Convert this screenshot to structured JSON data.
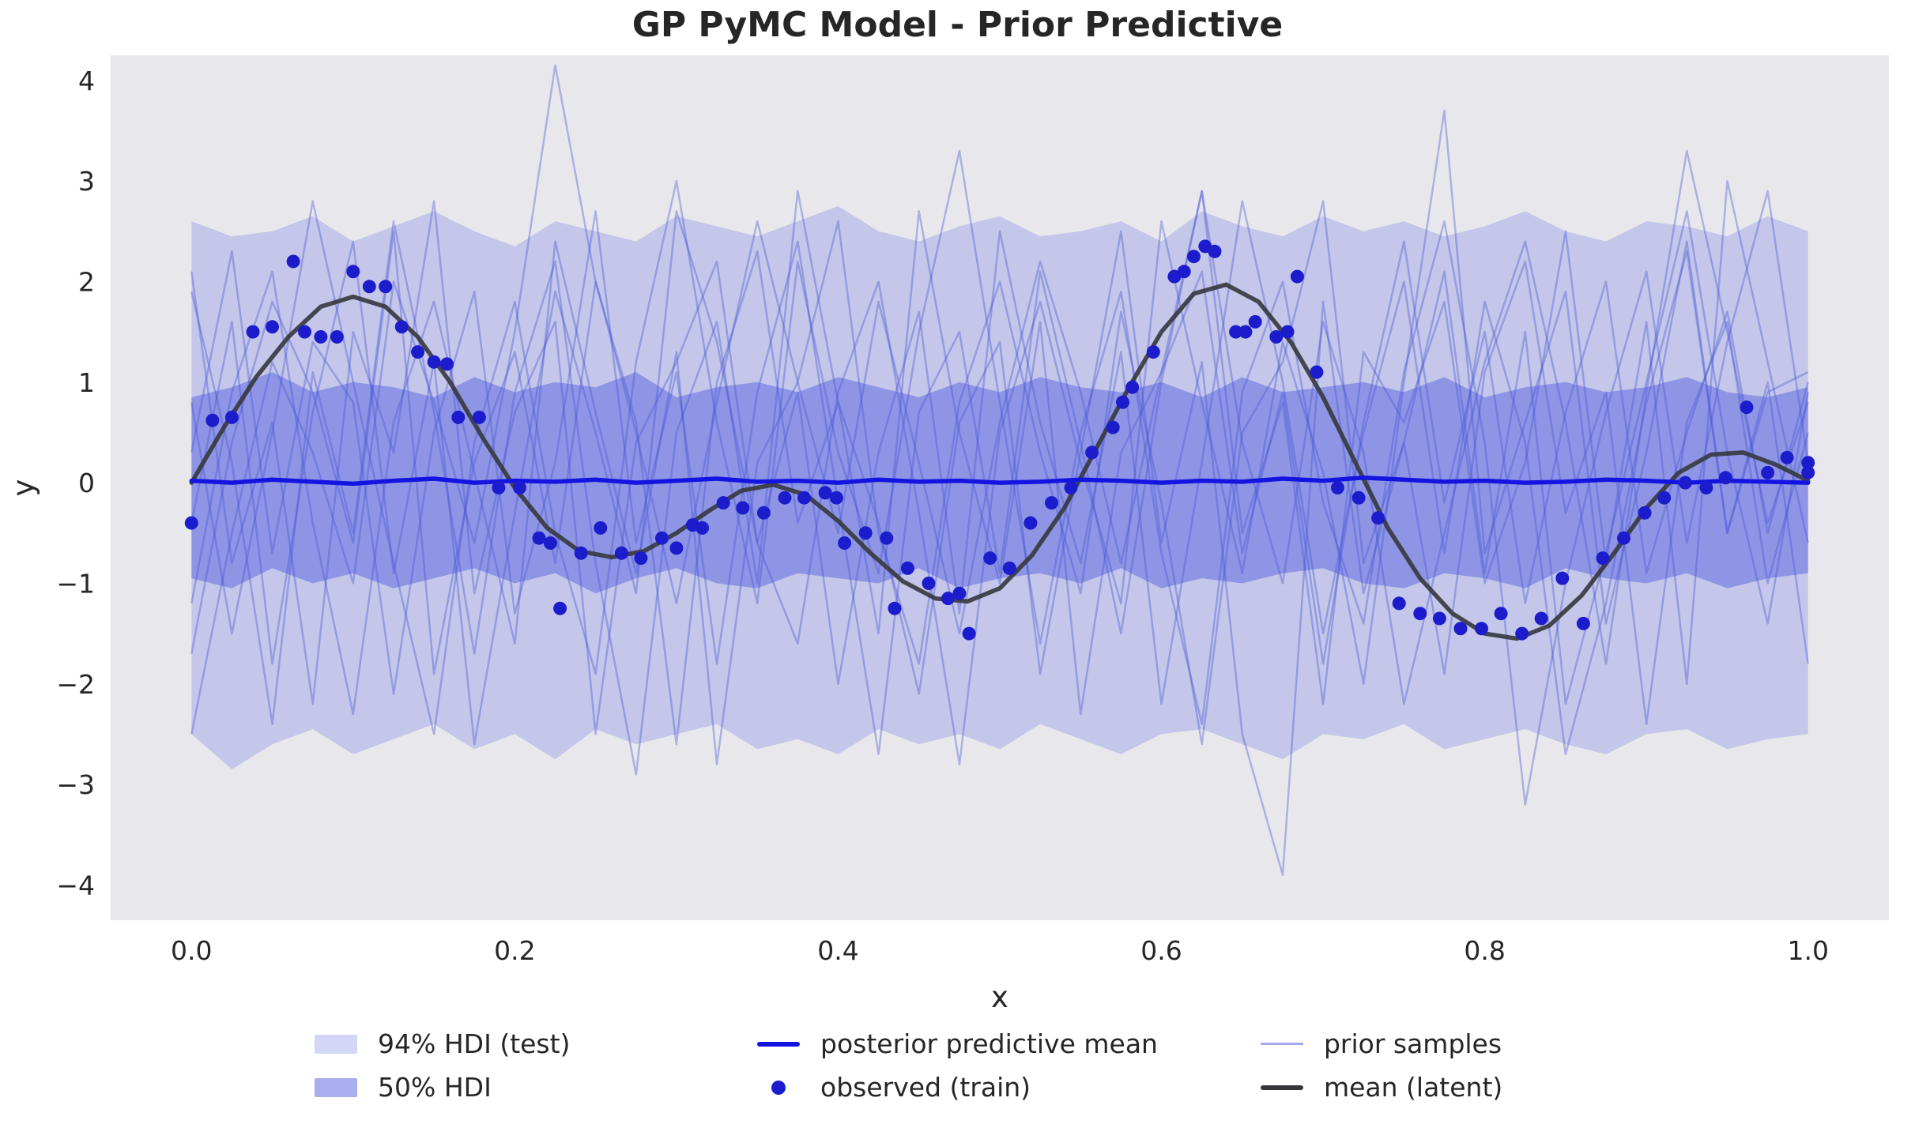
{
  "style": {
    "background": "#ffffff",
    "plot_bg": "#e8e8ec",
    "text_color": "#262626",
    "band_color": "#4350e0",
    "band94_opacity": 0.22,
    "band50_opacity": 0.42,
    "prior_sample_color": "#4754d6",
    "prior_sample_opacity": 0.38,
    "posterior_mean_color": "#1414e0",
    "observed_color": "#1c1ccc",
    "latent_color": "#35373d",
    "legend_94_swatch": "#d3d6f6",
    "legend_50_swatch": "#a9aeee",
    "legend_prior_swatch": "#a2aaec"
  },
  "chart_data": {
    "type": "line",
    "title": "GP PyMC Model - Prior Predictive",
    "xlabel": "x",
    "ylabel": "y",
    "xlim": [
      -0.05,
      1.05
    ],
    "ylim": [
      -4.35,
      4.25
    ],
    "xticks": [
      0.0,
      0.2,
      0.4,
      0.6,
      0.8,
      1.0
    ],
    "yticks": [
      -4,
      -3,
      -2,
      -1,
      0,
      1,
      2,
      3,
      4
    ],
    "grid": false,
    "legend_position": "below-center",
    "legend": {
      "hdi94": "94% HDI (test)",
      "hdi50": "50% HDI",
      "posterior_mean": "posterior predictive mean",
      "observed": "observed (train)",
      "prior_samples": "prior samples",
      "latent_mean": "mean (latent)"
    },
    "x_grid": [
      0.0,
      0.025,
      0.05,
      0.075,
      0.1,
      0.125,
      0.15,
      0.175,
      0.2,
      0.225,
      0.25,
      0.275,
      0.3,
      0.325,
      0.35,
      0.375,
      0.4,
      0.425,
      0.45,
      0.475,
      0.5,
      0.525,
      0.55,
      0.575,
      0.6,
      0.625,
      0.65,
      0.675,
      0.7,
      0.725,
      0.75,
      0.775,
      0.8,
      0.825,
      0.85,
      0.875,
      0.9,
      0.925,
      0.95,
      0.975,
      1.0
    ],
    "bands": {
      "hdi94": {
        "label": "94% HDI (test)",
        "upper": [
          2.6,
          2.45,
          2.5,
          2.65,
          2.4,
          2.55,
          2.7,
          2.5,
          2.35,
          2.6,
          2.5,
          2.4,
          2.65,
          2.55,
          2.45,
          2.6,
          2.75,
          2.5,
          2.4,
          2.55,
          2.65,
          2.45,
          2.5,
          2.6,
          2.4,
          2.7,
          2.55,
          2.45,
          2.65,
          2.5,
          2.6,
          2.45,
          2.55,
          2.7,
          2.5,
          2.4,
          2.6,
          2.55,
          2.45,
          2.65,
          2.5
        ],
        "lower": [
          -2.5,
          -2.85,
          -2.6,
          -2.45,
          -2.7,
          -2.55,
          -2.4,
          -2.65,
          -2.5,
          -2.75,
          -2.45,
          -2.6,
          -2.5,
          -2.4,
          -2.65,
          -2.55,
          -2.7,
          -2.45,
          -2.6,
          -2.5,
          -2.65,
          -2.4,
          -2.55,
          -2.7,
          -2.5,
          -2.45,
          -2.6,
          -2.75,
          -2.5,
          -2.55,
          -2.4,
          -2.65,
          -2.55,
          -2.45,
          -2.6,
          -2.7,
          -2.5,
          -2.45,
          -2.65,
          -2.55,
          -2.5
        ]
      },
      "hdi50": {
        "label": "50% HDI",
        "upper": [
          0.85,
          0.95,
          1.1,
          0.9,
          1.0,
          0.95,
          0.85,
          1.05,
          0.9,
          1.0,
          0.95,
          1.1,
          0.85,
          0.95,
          1.0,
          0.9,
          1.05,
          0.95,
          0.85,
          1.0,
          0.9,
          1.05,
          0.95,
          0.9,
          1.0,
          0.85,
          1.05,
          0.9,
          0.95,
          1.0,
          0.9,
          1.05,
          0.85,
          0.95,
          1.0,
          0.9,
          0.95,
          1.05,
          0.9,
          0.85,
          0.95
        ],
        "lower": [
          -0.95,
          -1.05,
          -0.85,
          -1.0,
          -0.9,
          -1.05,
          -0.95,
          -0.85,
          -1.0,
          -0.9,
          -1.1,
          -0.95,
          -0.85,
          -1.0,
          -1.05,
          -0.9,
          -0.95,
          -1.0,
          -0.85,
          -1.05,
          -0.95,
          -0.9,
          -1.0,
          -0.85,
          -1.05,
          -0.95,
          -1.0,
          -0.9,
          -0.85,
          -1.0,
          -1.05,
          -0.9,
          -0.95,
          -1.05,
          -0.85,
          -0.95,
          -1.0,
          -0.9,
          -1.05,
          -0.95,
          -0.9
        ]
      }
    },
    "posterior_mean": {
      "label": "posterior predictive mean",
      "y": [
        0.02,
        0.0,
        0.03,
        0.01,
        -0.01,
        0.02,
        0.04,
        0.0,
        0.02,
        0.01,
        0.03,
        0.0,
        0.02,
        0.04,
        0.01,
        0.02,
        0.0,
        0.03,
        0.01,
        0.02,
        0.0,
        0.01,
        0.03,
        0.02,
        0.0,
        0.02,
        0.01,
        0.04,
        0.02,
        0.05,
        0.03,
        0.01,
        0.02,
        0.0,
        0.01,
        0.03,
        0.02,
        0.0,
        0.02,
        0.01,
        0.0
      ]
    },
    "latent_mean": {
      "label": "mean (latent)",
      "x": [
        0.0,
        0.02,
        0.04,
        0.06,
        0.08,
        0.1,
        0.12,
        0.14,
        0.16,
        0.18,
        0.2,
        0.22,
        0.24,
        0.26,
        0.28,
        0.3,
        0.32,
        0.34,
        0.36,
        0.38,
        0.4,
        0.42,
        0.44,
        0.46,
        0.48,
        0.5,
        0.52,
        0.54,
        0.56,
        0.58,
        0.6,
        0.62,
        0.64,
        0.66,
        0.68,
        0.7,
        0.72,
        0.74,
        0.76,
        0.78,
        0.8,
        0.82,
        0.84,
        0.86,
        0.88,
        0.9,
        0.92,
        0.94,
        0.96,
        0.98,
        1.0
      ],
      "y": [
        0.0,
        0.55,
        1.05,
        1.45,
        1.75,
        1.85,
        1.75,
        1.45,
        1.0,
        0.45,
        -0.05,
        -0.45,
        -0.68,
        -0.74,
        -0.68,
        -0.5,
        -0.28,
        -0.08,
        -0.02,
        -0.12,
        -0.38,
        -0.7,
        -0.98,
        -1.15,
        -1.18,
        -1.05,
        -0.72,
        -0.25,
        0.35,
        0.95,
        1.5,
        1.88,
        1.97,
        1.8,
        1.4,
        0.85,
        0.2,
        -0.45,
        -0.95,
        -1.3,
        -1.5,
        -1.55,
        -1.42,
        -1.12,
        -0.7,
        -0.25,
        0.1,
        0.28,
        0.3,
        0.18,
        0.02
      ]
    },
    "observed": {
      "label": "observed (train)",
      "points": [
        [
          0.0,
          -0.4
        ],
        [
          0.013,
          0.62
        ],
        [
          0.025,
          0.65
        ],
        [
          0.038,
          1.5
        ],
        [
          0.05,
          1.55
        ],
        [
          0.063,
          2.2
        ],
        [
          0.07,
          1.5
        ],
        [
          0.08,
          1.45
        ],
        [
          0.09,
          1.45
        ],
        [
          0.1,
          2.1
        ],
        [
          0.11,
          1.95
        ],
        [
          0.12,
          1.95
        ],
        [
          0.13,
          1.55
        ],
        [
          0.14,
          1.3
        ],
        [
          0.15,
          1.2
        ],
        [
          0.158,
          1.18
        ],
        [
          0.165,
          0.65
        ],
        [
          0.178,
          0.65
        ],
        [
          0.19,
          -0.05
        ],
        [
          0.203,
          -0.05
        ],
        [
          0.215,
          -0.55
        ],
        [
          0.222,
          -0.6
        ],
        [
          0.228,
          -1.25
        ],
        [
          0.241,
          -0.7
        ],
        [
          0.253,
          -0.45
        ],
        [
          0.266,
          -0.7
        ],
        [
          0.278,
          -0.75
        ],
        [
          0.291,
          -0.55
        ],
        [
          0.3,
          -0.65
        ],
        [
          0.31,
          -0.42
        ],
        [
          0.316,
          -0.45
        ],
        [
          0.329,
          -0.2
        ],
        [
          0.341,
          -0.25
        ],
        [
          0.354,
          -0.3
        ],
        [
          0.367,
          -0.15
        ],
        [
          0.379,
          -0.15
        ],
        [
          0.392,
          -0.1
        ],
        [
          0.399,
          -0.15
        ],
        [
          0.404,
          -0.6
        ],
        [
          0.417,
          -0.5
        ],
        [
          0.43,
          -0.55
        ],
        [
          0.435,
          -1.25
        ],
        [
          0.443,
          -0.85
        ],
        [
          0.456,
          -1.0
        ],
        [
          0.468,
          -1.15
        ],
        [
          0.475,
          -1.1
        ],
        [
          0.481,
          -1.5
        ],
        [
          0.494,
          -0.75
        ],
        [
          0.506,
          -0.85
        ],
        [
          0.519,
          -0.4
        ],
        [
          0.532,
          -0.2
        ],
        [
          0.544,
          -0.05
        ],
        [
          0.557,
          0.3
        ],
        [
          0.57,
          0.55
        ],
        [
          0.576,
          0.8
        ],
        [
          0.582,
          0.95
        ],
        [
          0.595,
          1.3
        ],
        [
          0.608,
          2.05
        ],
        [
          0.614,
          2.1
        ],
        [
          0.62,
          2.25
        ],
        [
          0.627,
          2.35
        ],
        [
          0.633,
          2.3
        ],
        [
          0.646,
          1.5
        ],
        [
          0.652,
          1.5
        ],
        [
          0.658,
          1.6
        ],
        [
          0.671,
          1.45
        ],
        [
          0.678,
          1.5
        ],
        [
          0.684,
          2.05
        ],
        [
          0.696,
          1.1
        ],
        [
          0.709,
          -0.05
        ],
        [
          0.722,
          -0.15
        ],
        [
          0.734,
          -0.35
        ],
        [
          0.747,
          -1.2
        ],
        [
          0.76,
          -1.3
        ],
        [
          0.772,
          -1.35
        ],
        [
          0.785,
          -1.45
        ],
        [
          0.798,
          -1.45
        ],
        [
          0.81,
          -1.3
        ],
        [
          0.823,
          -1.5
        ],
        [
          0.835,
          -1.35
        ],
        [
          0.848,
          -0.95
        ],
        [
          0.861,
          -1.4
        ],
        [
          0.873,
          -0.75
        ],
        [
          0.886,
          -0.55
        ],
        [
          0.899,
          -0.3
        ],
        [
          0.911,
          -0.15
        ],
        [
          0.924,
          0.0
        ],
        [
          0.937,
          -0.05
        ],
        [
          0.949,
          0.05
        ],
        [
          0.962,
          0.75
        ],
        [
          0.975,
          0.1
        ],
        [
          0.987,
          0.25
        ],
        [
          1.0,
          0.1
        ],
        [
          1.0,
          0.2
        ]
      ]
    },
    "prior_samples": {
      "label": "prior samples",
      "y_list": [
        [
          -2.5,
          -0.5,
          1.2,
          0.3,
          -1.0,
          2.0,
          0.8,
          -0.6,
          1.5,
          4.15,
          2.0,
          0.5,
          -1.2,
          0.8,
          2.6,
          1.0,
          -0.5,
          1.8,
          0.2,
          -1.5,
          0.6,
          2.2,
          0.9,
          -0.8,
          1.1,
          2.9,
          0.4,
          -1.0,
          1.6,
          0.3,
          -2.2,
          -0.5,
          1.2,
          2.4,
          0.6,
          -1.8,
          0.9,
          3.3,
          1.5,
          -0.4,
          0.8
        ],
        [
          0.8,
          -1.5,
          0.5,
          2.8,
          1.0,
          -0.8,
          -2.5,
          0.4,
          1.8,
          -0.5,
          -1.9,
          1.2,
          3.0,
          0.6,
          -1.2,
          2.2,
          0.3,
          -0.9,
          1.5,
          3.3,
          0.8,
          -1.6,
          0.5,
          1.9,
          -0.7,
          -2.4,
          0.9,
          2.0,
          -0.2,
          -1.4,
          1.1,
          2.6,
          0.4,
          -3.2,
          -1.0,
          0.7,
          2.1,
          -0.6,
          1.4,
          2.9,
          0.2
        ],
        [
          -0.4,
          1.6,
          -1.8,
          0.7,
          2.4,
          -0.9,
          1.2,
          -2.6,
          -0.3,
          1.9,
          0.5,
          -1.1,
          2.7,
          1.4,
          -0.6,
          0.9,
          -2.0,
          0.3,
          1.7,
          -1.3,
          2.5,
          0.6,
          -0.8,
          1.3,
          -2.2,
          0.2,
          2.8,
          1.0,
          -1.5,
          0.5,
          2.0,
          -0.7,
          1.8,
          0.4,
          -2.7,
          -1.2,
          0.8,
          2.3,
          -0.5,
          1.0,
          -1.8
        ],
        [
          1.9,
          0.2,
          -2.4,
          1.1,
          -0.5,
          2.6,
          0.7,
          -1.7,
          0.9,
          2.2,
          -0.8,
          -2.9,
          0.5,
          1.6,
          -1.0,
          2.9,
          0.8,
          -0.4,
          -2.1,
          0.6,
          1.4,
          -1.9,
          0.3,
          2.5,
          -0.6,
          1.2,
          -2.5,
          -3.9,
          1.8,
          -1.1,
          0.4,
          2.1,
          -0.9,
          1.5,
          -2.2,
          -0.7,
          1.0,
          2.7,
          0.3,
          -1.4,
          0.9
        ],
        [
          -1.2,
          0.9,
          2.1,
          -0.4,
          -2.3,
          0.6,
          1.8,
          0.1,
          -1.6,
          2.4,
          0.7,
          -0.9,
          1.3,
          -2.8,
          0.2,
          1.0,
          2.6,
          -0.5,
          -1.8,
          0.8,
          2.0,
          0.3,
          -1.1,
          1.7,
          -0.2,
          -2.6,
          0.5,
          1.2,
          2.8,
          -0.8,
          0.4,
          -1.9,
          1.1,
          2.2,
          -0.3,
          0.9,
          -2.4,
          0.6,
          1.6,
          -1.0,
          0.5
        ],
        [
          0.3,
          2.3,
          -0.7,
          1.4,
          0.8,
          -2.1,
          0.5,
          1.9,
          -1.3,
          0.2,
          2.7,
          -0.6,
          1.1,
          -1.8,
          0.9,
          2.4,
          -0.2,
          -2.7,
          0.7,
          1.5,
          -0.9,
          2.1,
          0.4,
          -1.5,
          1.0,
          2.9,
          -0.5,
          0.8,
          -2.2,
          1.3,
          0.6,
          1.8,
          -1.0,
          0.2,
          2.5,
          -0.8,
          1.6,
          -2.0,
          3.0,
          1.2,
          -0.6
        ],
        [
          2.1,
          -0.8,
          0.6,
          -2.2,
          1.5,
          0.3,
          2.8,
          -1.1,
          0.7,
          1.6,
          -2.5,
          0.4,
          1.2,
          2.2,
          -0.6,
          -1.6,
          0.9,
          2.0,
          -0.3,
          -2.8,
          0.5,
          1.8,
          0.2,
          -1.2,
          2.6,
          0.8,
          -0.9,
          1.4,
          0.1,
          -2.0,
          1.0,
          3.7,
          -0.7,
          0.6,
          1.9,
          -1.4,
          0.3,
          2.4,
          -0.5,
          0.9,
          1.1
        ],
        [
          -1.7,
          0.4,
          1.8,
          0.9,
          -0.6,
          2.5,
          -1.9,
          0.2,
          1.3,
          -0.8,
          2.0,
          0.6,
          -2.6,
          1.0,
          2.3,
          -0.4,
          0.8,
          -1.5,
          2.7,
          0.5,
          -1.0,
          1.6,
          -2.3,
          0.3,
          1.1,
          2.1,
          -0.7,
          0.9,
          -1.8,
          0.6,
          2.4,
          -0.2,
          1.5,
          -1.2,
          0.7,
          2.0,
          -0.9,
          0.5,
          1.7,
          -0.5,
          1.0
        ]
      ]
    }
  }
}
